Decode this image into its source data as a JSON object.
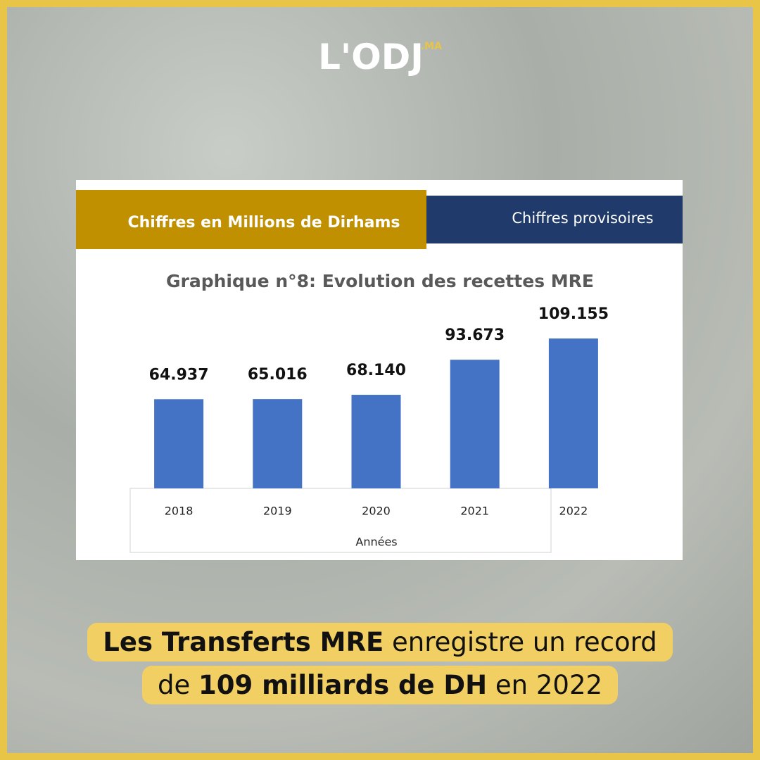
{
  "logo": {
    "name": "L'ODJ",
    "suffix": ".MA"
  },
  "header": {
    "left": "Chiffres en Millions de Dirhams",
    "right": "Chiffres provisoires"
  },
  "chart_data": {
    "type": "bar",
    "title": "Graphique n°8: Evolution des recettes MRE",
    "categories": [
      "2018",
      "2019",
      "2020",
      "2021",
      "2022"
    ],
    "values": [
      64937,
      65016,
      68140,
      93673,
      109155
    ],
    "value_labels": [
      "64.937",
      "65.016",
      "68.140",
      "93.673",
      "109.155"
    ],
    "color": "#4472c4",
    "x_label": "Années"
  },
  "caption": {
    "line1": [
      "Les Transferts MRE",
      "enregistre un record"
    ],
    "line2": [
      "de",
      "109 milliards de DH",
      "en 2022"
    ]
  }
}
